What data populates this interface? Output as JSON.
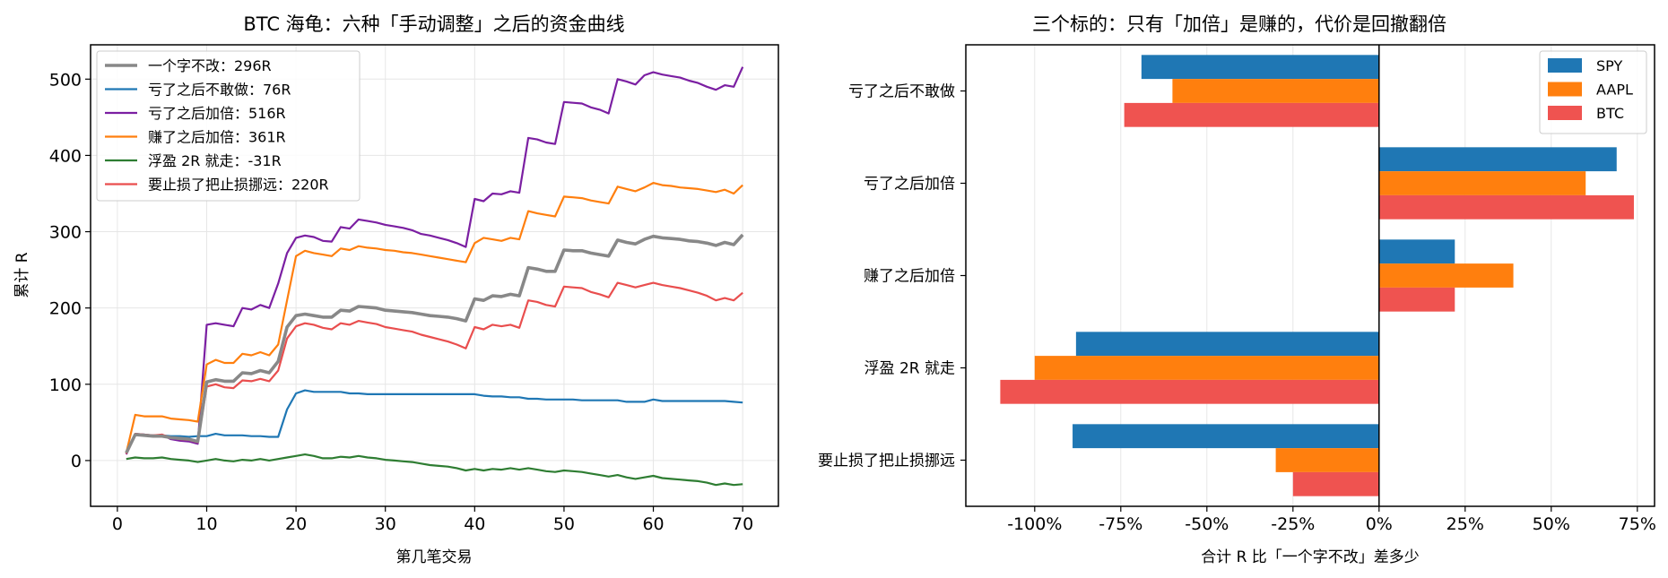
{
  "chart_data": [
    {
      "type": "line",
      "title": "BTC 海龟：六种「手动调整」之后的资金曲线",
      "xlabel": "第几笔交易",
      "ylabel": "累计 R",
      "xlim": [
        -3,
        74
      ],
      "ylim": [
        -60,
        545
      ],
      "xticks": [
        0,
        10,
        20,
        30,
        40,
        50,
        60,
        70
      ],
      "yticks": [
        0,
        100,
        200,
        300,
        400,
        500
      ],
      "grid": true,
      "legend_position": "top-left",
      "series": [
        {
          "name": "一个字不改：296R",
          "color": "#888888",
          "width": 3.6,
          "x": [
            1,
            2,
            3,
            4,
            5,
            6,
            7,
            8,
            9,
            10,
            11,
            12,
            13,
            14,
            15,
            16,
            17,
            18,
            19,
            20,
            21,
            22,
            23,
            24,
            25,
            26,
            27,
            28,
            29,
            30,
            31,
            32,
            33,
            34,
            35,
            36,
            37,
            38,
            39,
            40,
            41,
            42,
            43,
            44,
            45,
            46,
            47,
            48,
            49,
            50,
            51,
            52,
            53,
            54,
            55,
            56,
            57,
            58,
            59,
            60,
            61,
            62,
            63,
            64,
            65,
            66,
            67,
            68,
            69,
            70
          ],
          "y": [
            10,
            34,
            33,
            32,
            32,
            30,
            29,
            28,
            25,
            103,
            106,
            104,
            104,
            115,
            114,
            118,
            115,
            130,
            175,
            190,
            192,
            190,
            188,
            188,
            197,
            196,
            202,
            201,
            200,
            197,
            196,
            195,
            194,
            192,
            190,
            189,
            188,
            186,
            183,
            212,
            210,
            216,
            215,
            218,
            216,
            253,
            251,
            248,
            248,
            276,
            275,
            275,
            272,
            270,
            268,
            289,
            286,
            284,
            290,
            294,
            292,
            291,
            290,
            288,
            287,
            285,
            282,
            286,
            283,
            296
          ]
        },
        {
          "name": "亏了之后不敢做：76R",
          "color": "#1f77b4",
          "width": 2.2,
          "x": [
            1,
            2,
            3,
            4,
            5,
            6,
            7,
            8,
            9,
            10,
            11,
            12,
            13,
            14,
            15,
            16,
            17,
            18,
            19,
            20,
            21,
            22,
            23,
            24,
            25,
            26,
            27,
            28,
            29,
            30,
            31,
            32,
            33,
            34,
            35,
            36,
            37,
            38,
            39,
            40,
            41,
            42,
            43,
            44,
            45,
            46,
            47,
            48,
            49,
            50,
            51,
            52,
            53,
            54,
            55,
            56,
            57,
            58,
            59,
            60,
            61,
            62,
            63,
            64,
            65,
            66,
            67,
            68,
            69,
            70
          ],
          "y": [
            10,
            35,
            34,
            33,
            33,
            32,
            32,
            31,
            32,
            32,
            35,
            33,
            33,
            33,
            32,
            32,
            31,
            31,
            67,
            88,
            92,
            90,
            90,
            90,
            90,
            88,
            88,
            87,
            87,
            87,
            87,
            87,
            87,
            87,
            87,
            87,
            87,
            87,
            87,
            87,
            85,
            84,
            84,
            83,
            83,
            81,
            81,
            80,
            80,
            80,
            80,
            79,
            79,
            79,
            79,
            79,
            77,
            77,
            77,
            80,
            78,
            78,
            78,
            78,
            78,
            78,
            78,
            78,
            77,
            76
          ]
        },
        {
          "name": "亏了之后加倍：516R",
          "color": "#7b1fa2",
          "width": 2.2,
          "x": [
            1,
            2,
            3,
            4,
            5,
            6,
            7,
            8,
            9,
            10,
            11,
            12,
            13,
            14,
            15,
            16,
            17,
            18,
            19,
            20,
            21,
            22,
            23,
            24,
            25,
            26,
            27,
            28,
            29,
            30,
            31,
            32,
            33,
            34,
            35,
            36,
            37,
            38,
            39,
            40,
            41,
            42,
            43,
            44,
            45,
            46,
            47,
            48,
            49,
            50,
            51,
            52,
            53,
            54,
            55,
            56,
            57,
            58,
            59,
            60,
            61,
            62,
            63,
            64,
            65,
            66,
            67,
            68,
            69,
            70
          ],
          "y": [
            8,
            34,
            34,
            32,
            34,
            28,
            26,
            25,
            22,
            178,
            180,
            178,
            176,
            200,
            198,
            204,
            200,
            232,
            272,
            292,
            295,
            293,
            288,
            287,
            306,
            304,
            316,
            314,
            312,
            309,
            307,
            305,
            302,
            297,
            295,
            292,
            289,
            285,
            280,
            343,
            340,
            350,
            349,
            353,
            351,
            423,
            421,
            417,
            415,
            470,
            469,
            468,
            463,
            460,
            455,
            500,
            497,
            493,
            505,
            509,
            506,
            504,
            502,
            498,
            495,
            490,
            486,
            492,
            490,
            516
          ]
        },
        {
          "name": "赚了之后加倍：361R",
          "color": "#ff7f0e",
          "width": 2.2,
          "x": [
            1,
            2,
            3,
            4,
            5,
            6,
            7,
            8,
            9,
            10,
            11,
            12,
            13,
            14,
            15,
            16,
            17,
            18,
            19,
            20,
            21,
            22,
            23,
            24,
            25,
            26,
            27,
            28,
            29,
            30,
            31,
            32,
            33,
            34,
            35,
            36,
            37,
            38,
            39,
            40,
            41,
            42,
            43,
            44,
            45,
            46,
            47,
            48,
            49,
            50,
            51,
            52,
            53,
            54,
            55,
            56,
            57,
            58,
            59,
            60,
            61,
            62,
            63,
            64,
            65,
            66,
            67,
            68,
            69,
            70
          ],
          "y": [
            10,
            60,
            58,
            58,
            58,
            55,
            54,
            53,
            51,
            126,
            132,
            128,
            128,
            140,
            138,
            142,
            138,
            152,
            210,
            268,
            275,
            272,
            270,
            268,
            278,
            276,
            281,
            279,
            278,
            276,
            275,
            273,
            272,
            270,
            268,
            266,
            264,
            262,
            260,
            285,
            292,
            290,
            288,
            292,
            290,
            327,
            324,
            322,
            320,
            346,
            345,
            344,
            341,
            339,
            337,
            359,
            356,
            353,
            358,
            364,
            361,
            360,
            358,
            357,
            356,
            354,
            352,
            355,
            350,
            361
          ]
        },
        {
          "name": "浮盈 2R 就走：-31R",
          "color": "#2e7d32",
          "width": 2.2,
          "x": [
            1,
            2,
            3,
            4,
            5,
            6,
            7,
            8,
            9,
            10,
            11,
            12,
            13,
            14,
            15,
            16,
            17,
            18,
            19,
            20,
            21,
            22,
            23,
            24,
            25,
            26,
            27,
            28,
            29,
            30,
            31,
            32,
            33,
            34,
            35,
            36,
            37,
            38,
            39,
            40,
            41,
            42,
            43,
            44,
            45,
            46,
            47,
            48,
            49,
            50,
            51,
            52,
            53,
            54,
            55,
            56,
            57,
            58,
            59,
            60,
            61,
            62,
            63,
            64,
            65,
            66,
            67,
            68,
            69,
            70
          ],
          "y": [
            2,
            4,
            3,
            3,
            4,
            2,
            1,
            0,
            -2,
            0,
            2,
            0,
            -1,
            1,
            0,
            2,
            0,
            2,
            4,
            6,
            8,
            6,
            3,
            3,
            5,
            4,
            6,
            4,
            3,
            1,
            0,
            -1,
            -2,
            -4,
            -6,
            -7,
            -8,
            -10,
            -13,
            -11,
            -13,
            -11,
            -12,
            -10,
            -12,
            -10,
            -12,
            -14,
            -15,
            -13,
            -14,
            -15,
            -17,
            -19,
            -21,
            -19,
            -22,
            -24,
            -22,
            -20,
            -23,
            -24,
            -25,
            -26,
            -27,
            -29,
            -32,
            -30,
            -32,
            -31
          ]
        },
        {
          "name": "要止损了把止损挪远：220R",
          "color": "#e94e4e",
          "width": 2.2,
          "x": [
            1,
            2,
            3,
            4,
            5,
            6,
            7,
            8,
            9,
            10,
            11,
            12,
            13,
            14,
            15,
            16,
            17,
            18,
            19,
            20,
            21,
            22,
            23,
            24,
            25,
            26,
            27,
            28,
            29,
            30,
            31,
            32,
            33,
            34,
            35,
            36,
            37,
            38,
            39,
            40,
            41,
            42,
            43,
            44,
            45,
            46,
            47,
            48,
            49,
            50,
            51,
            52,
            53,
            54,
            55,
            56,
            57,
            58,
            59,
            60,
            61,
            62,
            63,
            64,
            65,
            66,
            67,
            68,
            69,
            70
          ],
          "y": [
            9,
            35,
            34,
            33,
            34,
            30,
            28,
            27,
            24,
            97,
            100,
            96,
            95,
            105,
            104,
            107,
            104,
            118,
            160,
            176,
            180,
            178,
            174,
            172,
            180,
            178,
            183,
            181,
            179,
            175,
            173,
            171,
            169,
            165,
            162,
            159,
            156,
            152,
            147,
            175,
            172,
            178,
            176,
            178,
            174,
            210,
            208,
            204,
            202,
            228,
            227,
            226,
            221,
            218,
            214,
            233,
            230,
            227,
            230,
            233,
            230,
            228,
            226,
            223,
            220,
            216,
            210,
            213,
            210,
            220
          ]
        }
      ]
    },
    {
      "type": "bar",
      "orientation": "horizontal",
      "title": "三个标的：只有「加倍」是赚的，代价是回撤翻倍",
      "xlabel": "合计 R 比「一个字不改」差多少",
      "ylabel": "",
      "xlim": [
        -1.2,
        0.8
      ],
      "xticks": [
        -1.0,
        -0.75,
        -0.5,
        -0.25,
        0,
        0.25,
        0.5,
        0.75
      ],
      "xtick_labels": [
        "-100%",
        "-75%",
        "-50%",
        "-25%",
        "0%",
        "25%",
        "50%",
        "75%"
      ],
      "grid": true,
      "legend_position": "top-right",
      "categories": [
        "亏了之后不敢做",
        "亏了之后加倍",
        "赚了之后加倍",
        "浮盈 2R 就走",
        "要止损了把止损挪远"
      ],
      "series": [
        {
          "name": "SPY",
          "color": "#1f77b4",
          "values": [
            -0.69,
            0.69,
            0.22,
            -0.88,
            -0.89
          ]
        },
        {
          "name": "AAPL",
          "color": "#ff7f0e",
          "values": [
            -0.6,
            0.6,
            0.39,
            -1.0,
            -0.3
          ]
        },
        {
          "name": "BTC",
          "color": "#ef5350",
          "values": [
            -0.74,
            0.74,
            0.22,
            -1.1,
            -0.25
          ]
        }
      ]
    }
  ]
}
